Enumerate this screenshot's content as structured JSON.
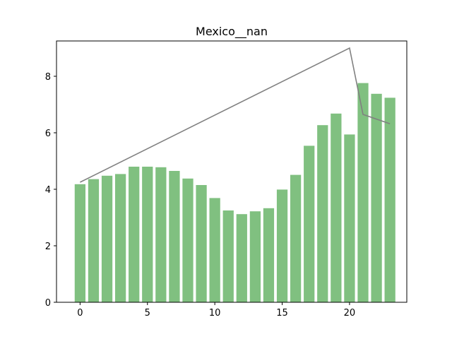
{
  "chart_data": {
    "type": "bar",
    "title": "Mexico__nan",
    "xlabel": "",
    "ylabel": "",
    "x": [
      0,
      1,
      2,
      3,
      4,
      5,
      6,
      7,
      8,
      9,
      10,
      11,
      12,
      13,
      14,
      15,
      16,
      17,
      18,
      19,
      20,
      21,
      22,
      23
    ],
    "values": [
      4.18,
      4.36,
      4.48,
      4.54,
      4.8,
      4.8,
      4.78,
      4.65,
      4.38,
      4.15,
      3.69,
      3.25,
      3.12,
      3.22,
      3.33,
      3.99,
      4.51,
      5.54,
      6.27,
      6.68,
      5.94,
      7.76,
      7.38,
      7.24
    ],
    "line": {
      "x": [
        0,
        20,
        21,
        23
      ],
      "y": [
        4.25,
        9.0,
        6.65,
        6.32
      ]
    },
    "xlim": [
      -1.75,
      24.25
    ],
    "ylim": [
      0,
      9.25
    ],
    "xticks": [
      0,
      5,
      10,
      15,
      20
    ],
    "yticks": [
      0,
      2,
      4,
      6,
      8
    ],
    "grid": false,
    "colors": {
      "bar": "#80c080",
      "line": "#808080",
      "axes": "#000000"
    }
  }
}
